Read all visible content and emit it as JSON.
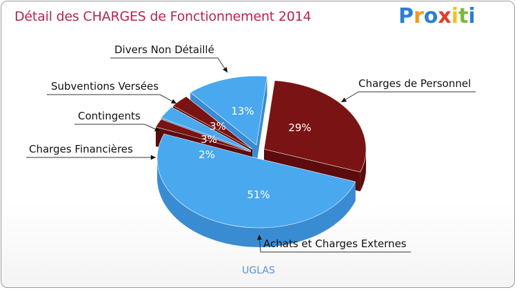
{
  "header": {
    "title": "Détail des CHARGES de Fonctionnement 2014",
    "logo": [
      "P",
      "r",
      "o",
      "x",
      "i",
      "t",
      "i"
    ],
    "logo_colors": [
      "#2a7fd4",
      "#f29a1e",
      "#2a7fd4",
      "#e23a2c",
      "#f2c21e",
      "#7ab83c",
      "#2a7fd4"
    ]
  },
  "footer": {
    "commune": "UGLAS"
  },
  "colors": {
    "blue": "#4aa8ee",
    "blue_side": "#3a8cd2",
    "red": "#7a1414",
    "red_side": "#5c0c0c"
  },
  "chart_data": {
    "type": "pie",
    "title": "Détail des CHARGES de Fonctionnement 2014",
    "slices": [
      {
        "label": "Charges de Personnel",
        "percent_label": "29%",
        "value": 29,
        "color": "red"
      },
      {
        "label": "Achats et Charges Externes",
        "percent_label": "51%",
        "value": 51,
        "color": "blue"
      },
      {
        "label": "Charges Financières",
        "percent_label": "2%",
        "value": 2,
        "color": "red"
      },
      {
        "label": "Contingents",
        "percent_label": "3%",
        "value": 3,
        "color": "blue"
      },
      {
        "label": "Subventions Versées",
        "percent_label": "3%",
        "value": 3,
        "color": "red"
      },
      {
        "label": "Divers Non Détaillé",
        "percent_label": "13%",
        "value": 13,
        "color": "blue"
      }
    ]
  }
}
